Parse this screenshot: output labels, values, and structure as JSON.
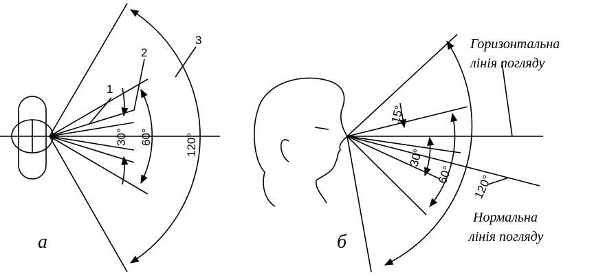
{
  "left": {
    "numbers": [
      "1",
      "2",
      "3"
    ],
    "angles": [
      "30°",
      "60°",
      "120°"
    ],
    "caption": "а"
  },
  "right": {
    "angles": [
      "15°",
      "30°",
      "60°",
      "120°"
    ],
    "caption": "б",
    "horizontal": [
      "Горизонтальна",
      "лінія погляду"
    ],
    "normal": [
      "Нормальна",
      "лінія погляду"
    ]
  }
}
